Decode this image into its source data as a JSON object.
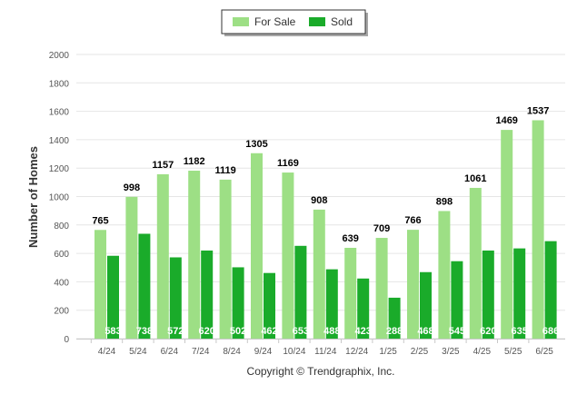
{
  "chart_data": {
    "type": "bar",
    "categories": [
      "4/24",
      "5/24",
      "6/24",
      "7/24",
      "8/24",
      "9/24",
      "10/24",
      "11/24",
      "12/24",
      "1/25",
      "2/25",
      "3/25",
      "4/25",
      "5/25",
      "6/25"
    ],
    "series": [
      {
        "name": "For Sale",
        "color": "#9ddf85",
        "values": [
          765,
          998,
          1157,
          1182,
          1119,
          1305,
          1169,
          908,
          639,
          709,
          766,
          898,
          1061,
          1469,
          1537
        ]
      },
      {
        "name": "Sold",
        "color": "#1aab2a",
        "values": [
          583,
          738,
          572,
          620,
          502,
          462,
          653,
          488,
          423,
          288,
          468,
          545,
          620,
          635,
          686
        ]
      }
    ],
    "ylabel": "Number of Homes",
    "xlabel": "",
    "ylim": [
      0,
      2000
    ],
    "yticks": [
      0,
      200,
      400,
      600,
      800,
      1000,
      1200,
      1400,
      1600,
      1800,
      2000
    ],
    "grid": true,
    "legend_position": "top-center"
  },
  "footer": {
    "copyright": "Copyright © Trendgraphix, Inc."
  }
}
